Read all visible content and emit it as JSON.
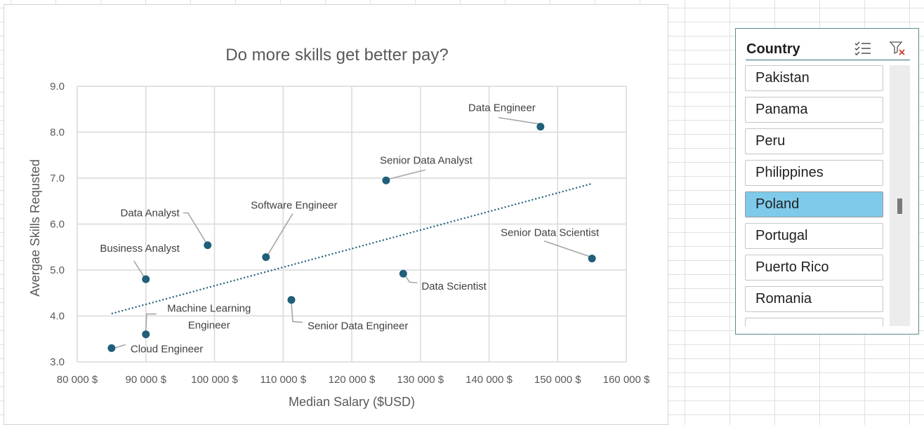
{
  "chart_data": {
    "type": "scatter",
    "title": "Do more skills get better pay?",
    "xlabel": "Median Salary ($USD)",
    "ylabel": "Avergae Skills Requsted",
    "xlim": [
      80000,
      160000
    ],
    "ylim": [
      3.0,
      9.0
    ],
    "x_ticks": [
      80000,
      90000,
      100000,
      110000,
      120000,
      130000,
      140000,
      150000,
      160000
    ],
    "x_tick_labels": [
      "80 000 $",
      "90 000 $",
      "100 000 $",
      "110 000 $",
      "120 000 $",
      "130 000 $",
      "140 000 $",
      "150 000 $",
      "160 000 $"
    ],
    "y_ticks": [
      3,
      4,
      5,
      6,
      7,
      8,
      9
    ],
    "y_tick_labels": [
      "3.0",
      "4.0",
      "5.0",
      "6.0",
      "7.0",
      "8.0",
      "9.0"
    ],
    "grid": true,
    "legend": "none",
    "marker_color": "#1f5f7a",
    "trendline": {
      "type": "linear",
      "style": "dotted",
      "color": "#1f5f7a",
      "x_range": [
        85000,
        155000
      ],
      "y_range": [
        4.05,
        6.88
      ]
    },
    "points": [
      {
        "label": "Data Engineer",
        "x": 147500,
        "y": 8.12
      },
      {
        "label": "Senior Data Analyst",
        "x": 125000,
        "y": 6.95
      },
      {
        "label": "Senior Data Scientist",
        "x": 155000,
        "y": 5.25
      },
      {
        "label": "Data Analyst",
        "x": 99000,
        "y": 5.54
      },
      {
        "label": "Software Engineer",
        "x": 107500,
        "y": 5.28
      },
      {
        "label": "Business Analyst",
        "x": 90000,
        "y": 4.8
      },
      {
        "label": "Data Scientist",
        "x": 127500,
        "y": 4.92
      },
      {
        "label": "Senior Data Engineer",
        "x": 111200,
        "y": 4.35
      },
      {
        "label": "Machine Learning Engineer",
        "x": 90000,
        "y": 3.6
      },
      {
        "label": "Cloud Engineer",
        "x": 85000,
        "y": 3.3
      }
    ]
  },
  "slicer": {
    "title": "Country",
    "items": [
      {
        "label": "Pakistan",
        "selected": false
      },
      {
        "label": "Panama",
        "selected": false
      },
      {
        "label": "Peru",
        "selected": false
      },
      {
        "label": "Philippines",
        "selected": false
      },
      {
        "label": "Poland",
        "selected": true
      },
      {
        "label": "Portugal",
        "selected": false
      },
      {
        "label": "Puerto Rico",
        "selected": false
      },
      {
        "label": "Romania",
        "selected": false
      }
    ],
    "icons": {
      "multiselect": "multi-select-icon",
      "clear": "clear-filter-icon"
    }
  }
}
